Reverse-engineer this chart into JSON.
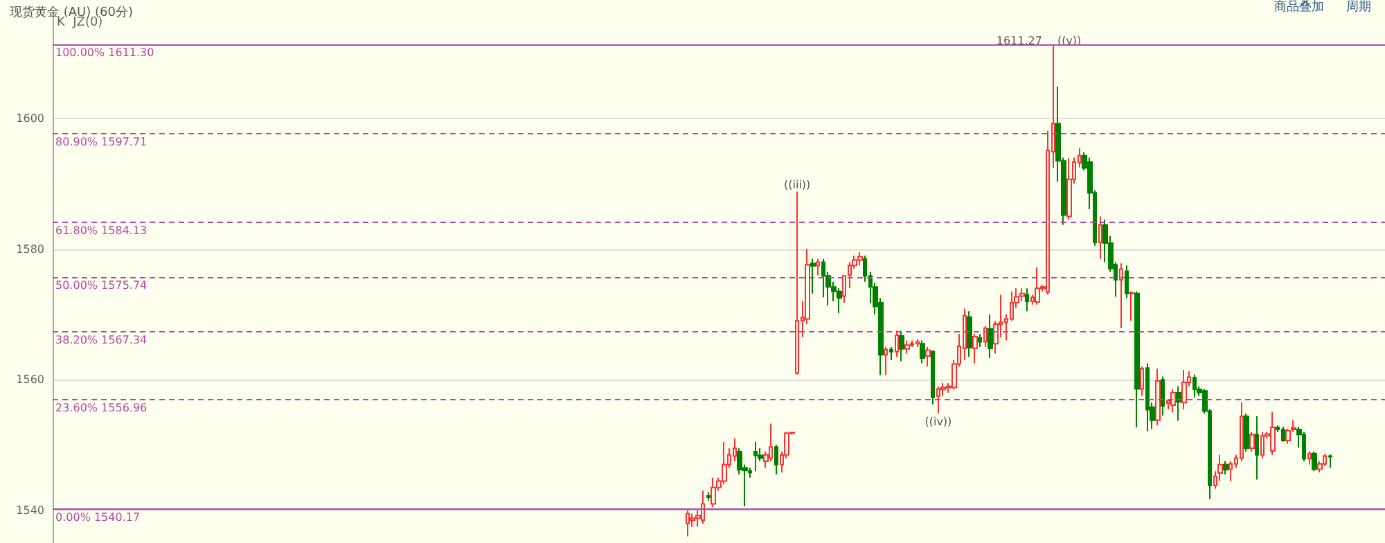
{
  "chart_data": {
    "type": "candlestick",
    "title": "现货黄金 (AU) (60分)",
    "categories": [
      null,
      null,
      null,
      null,
      null,
      null,
      null,
      null,
      null,
      null,
      null,
      null,
      null,
      null,
      null,
      null,
      null,
      null,
      null,
      null,
      null,
      null,
      null,
      null,
      null,
      null,
      null,
      null,
      null,
      null,
      null,
      null,
      null,
      null,
      null,
      null,
      null,
      null,
      null,
      null,
      null,
      null,
      null,
      null,
      null,
      null,
      null,
      null,
      null,
      null,
      null,
      null,
      null,
      null,
      null,
      null,
      null,
      null,
      null,
      null,
      null,
      null,
      null,
      null,
      null,
      null,
      null,
      null,
      null,
      null,
      null,
      null,
      null,
      null,
      null,
      null,
      null,
      null,
      null,
      null,
      null,
      null,
      null,
      null,
      null,
      null,
      null,
      null,
      null,
      null,
      null,
      null,
      null,
      null,
      null,
      null,
      null,
      null,
      null,
      null,
      null,
      null,
      null,
      null,
      null,
      null,
      null,
      null,
      null,
      null,
      null,
      null,
      null,
      null,
      null,
      null,
      null,
      null,
      null,
      null,
      null,
      null,
      null,
      null,
      null,
      null,
      null,
      null,
      null,
      null,
      null,
      null,
      null,
      null,
      null,
      null,
      null,
      null,
      null,
      null,
      null,
      null,
      null,
      null,
      null,
      null,
      null,
      null,
      null,
      null,
      null,
      null,
      null,
      null,
      null,
      null,
      null,
      null,
      null,
      null,
      null,
      null,
      null,
      null,
      null,
      null,
      null,
      null,
      null,
      null,
      null,
      null,
      null,
      null,
      null,
      null,
      null,
      null,
      null,
      null,
      null,
      null,
      null,
      null,
      null,
      null,
      null,
      null,
      null,
      null,
      null,
      null,
      null,
      null,
      null,
      null,
      null,
      null,
      null,
      null,
      null,
      null,
      null,
      null,
      null,
      null,
      null,
      null,
      null,
      null,
      null,
      null,
      null,
      null,
      null,
      null,
      null,
      null,
      null,
      null,
      null,
      null,
      null,
      null,
      null,
      null,
      null,
      null,
      null,
      null,
      null,
      null,
      null,
      null,
      null,
      null,
      null,
      null,
      null,
      null,
      null,
      null,
      null,
      null,
      null,
      null,
      null,
      null,
      null,
      null,
      null,
      null,
      null,
      null,
      null
    ],
    "ohlc": [
      null,
      null,
      null,
      null,
      null,
      null,
      null,
      null,
      null,
      null,
      null,
      null,
      null,
      null,
      null,
      null,
      null,
      null,
      null,
      null,
      null,
      null,
      null,
      null,
      null,
      null,
      null,
      null,
      null,
      null,
      null,
      null,
      null,
      null,
      null,
      null,
      null,
      null,
      null,
      null,
      null,
      null,
      null,
      null,
      null,
      null,
      null,
      null,
      null,
      null,
      null,
      null,
      null,
      null,
      null,
      null,
      null,
      null,
      null,
      null,
      null,
      null,
      null,
      null,
      null,
      null,
      null,
      null,
      null,
      null,
      null,
      null,
      null,
      null,
      null,
      null,
      null,
      null,
      null,
      null,
      null,
      null,
      null,
      null,
      null,
      null,
      null,
      null,
      null,
      null,
      null,
      null,
      null,
      null,
      null,
      null,
      null,
      null,
      null,
      null,
      null,
      null,
      null,
      null,
      null,
      null,
      null,
      null,
      null,
      null,
      null,
      null,
      null,
      null,
      null,
      null,
      null,
      null,
      null,
      null,
      null,
      [
        1538,
        1540,
        1536,
        1539.5
      ],
      [
        1538.5,
        1539.5,
        1537.5,
        1538.8
      ],
      [
        1538.8,
        1540,
        1537.5,
        1539.2
      ],
      [
        1538.5,
        1543,
        1538,
        1541
      ],
      [
        1542.2,
        1542.8,
        1541.5,
        1542
      ],
      [
        1541,
        1545,
        1540.5,
        1543.5
      ],
      [
        1543.5,
        1545,
        1543,
        1544.5
      ],
      [
        1544.5,
        1550.5,
        1544,
        1547
      ],
      [
        1547,
        1549.5,
        1546.5,
        1548.5
      ],
      [
        1548.3,
        1551,
        1547.5,
        1549.5
      ],
      [
        1549,
        1549.5,
        1545.5,
        1546.2
      ],
      [
        1546.5,
        1547,
        1540.6,
        1546.1
      ],
      [
        1546,
        1546.5,
        1545,
        1545.8
      ],
      [
        1549,
        1550.5,
        1546,
        1548.4
      ],
      [
        1548.4,
        1549.5,
        1547.5,
        1548
      ],
      [
        1547.5,
        1549,
        1546.5,
        1548.5
      ],
      [
        1548,
        1553.3,
        1547.5,
        1549.7
      ],
      [
        1549.7,
        1550,
        1545.5,
        1547
      ],
      [
        1547,
        1549,
        1545.8,
        1548.5
      ],
      [
        1548.5,
        1552,
        1548,
        1551.8
      ],
      [
        1551.8,
        1552,
        1551.6,
        1551.9
      ],
      [
        1561,
        1588.8,
        1560.8,
        1569
      ],
      [
        1569,
        1572,
        1566.5,
        1569.5
      ],
      [
        1569.3,
        1580,
        1568.5,
        1577.6
      ],
      [
        1577.8,
        1578.5,
        1573.2,
        1577.4
      ],
      [
        1577.5,
        1578.5,
        1576,
        1578
      ],
      [
        1578,
        1578.5,
        1572.6,
        1575.9
      ],
      [
        1575.9,
        1576.5,
        1571.4,
        1574.2
      ],
      [
        1574.2,
        1575,
        1572,
        1573.5
      ],
      [
        1573.5,
        1574,
        1570.2,
        1572.5
      ],
      [
        1572.8,
        1576,
        1571.8,
        1575.9
      ],
      [
        1576,
        1578,
        1574,
        1577.5
      ],
      [
        1577.5,
        1579,
        1577,
        1578.3
      ],
      [
        1578.3,
        1579.5,
        1577.5,
        1578.8
      ],
      [
        1578.5,
        1579,
        1575,
        1575.9
      ],
      [
        1575.9,
        1576.5,
        1571.7,
        1574.2
      ],
      [
        1574.2,
        1574.8,
        1570,
        1571.2
      ],
      [
        1571.8,
        1572.5,
        1560.7,
        1563.8
      ],
      [
        1563.8,
        1565,
        1560.7,
        1564.6
      ],
      [
        1564.6,
        1565,
        1563,
        1564.3
      ],
      [
        1564.3,
        1567.5,
        1563.5,
        1566.8
      ],
      [
        1566.7,
        1567.5,
        1562.8,
        1564.7
      ],
      [
        1564.7,
        1566,
        1564,
        1565.3
      ],
      [
        1565.3,
        1566,
        1565,
        1565.5
      ],
      [
        1565.5,
        1566.2,
        1565,
        1565.8
      ],
      [
        1565.5,
        1566,
        1562.5,
        1563.3
      ],
      [
        1563.6,
        1565,
        1562,
        1564.5
      ],
      [
        1564.3,
        1564.5,
        1556.2,
        1557.3
      ],
      [
        1557.5,
        1559,
        1554.8,
        1558.6
      ],
      [
        1558.5,
        1559.5,
        1557.5,
        1558.8
      ],
      [
        1558.8,
        1559.5,
        1558,
        1559
      ],
      [
        1558.8,
        1563,
        1558.5,
        1562.4
      ],
      [
        1562.4,
        1567,
        1562,
        1565.1
      ],
      [
        1564.8,
        1570.9,
        1563,
        1569.8
      ],
      [
        1569.6,
        1570.5,
        1563.5,
        1564.9
      ],
      [
        1564.8,
        1567,
        1562.5,
        1566.6
      ],
      [
        1566.4,
        1567,
        1565,
        1565.8
      ],
      [
        1565.8,
        1568.2,
        1565,
        1567.9
      ],
      [
        1567.8,
        1570,
        1563.3,
        1564.8
      ],
      [
        1565.5,
        1569,
        1564,
        1568.5
      ],
      [
        1568.5,
        1573,
        1566.5,
        1568.8
      ],
      [
        1568.8,
        1570,
        1566,
        1569.3
      ],
      [
        1569.3,
        1573.5,
        1569,
        1571.8
      ],
      [
        1571.8,
        1574,
        1571,
        1572.7
      ],
      [
        1572.8,
        1574,
        1572,
        1573.2
      ],
      [
        1573,
        1574,
        1570.5,
        1572
      ],
      [
        1572,
        1573,
        1571.5,
        1572.6
      ],
      [
        1571.9,
        1577.2,
        1571.5,
        1574
      ],
      [
        1574,
        1574.5,
        1573.5,
        1574.2
      ],
      [
        1573.4,
        1598.1,
        1573,
        1595.1
      ],
      [
        1594.9,
        1611.27,
        1592.4,
        1599.2
      ],
      [
        1599.2,
        1604.9,
        1590.3,
        1593.5
      ],
      [
        1593.5,
        1594,
        1583.7,
        1585.2
      ],
      [
        1585,
        1593.9,
        1584.5,
        1590.7
      ],
      [
        1590.7,
        1594,
        1590,
        1593.3
      ],
      [
        1593.2,
        1595.4,
        1592.5,
        1594.3
      ],
      [
        1594.3,
        1594.8,
        1592,
        1592.4
      ],
      [
        1593.3,
        1594,
        1586.1,
        1588.6
      ],
      [
        1588.6,
        1589,
        1580.5,
        1581
      ],
      [
        1581,
        1585,
        1578.5,
        1583.7
      ],
      [
        1583.7,
        1584.5,
        1578,
        1580.9
      ],
      [
        1580.9,
        1582,
        1576.5,
        1577
      ],
      [
        1577.6,
        1578,
        1572.7,
        1575.3
      ],
      [
        1575.3,
        1577.8,
        1567.9,
        1576.9
      ],
      [
        1576.6,
        1577.5,
        1572.5,
        1573.2
      ],
      [
        1573.2,
        1573.5,
        1569,
        1573.3
      ],
      [
        1573.2,
        1573.5,
        1552.7,
        1558.6
      ],
      [
        1558.6,
        1562,
        1557.5,
        1561.7
      ],
      [
        1561.8,
        1562.5,
        1552.1,
        1555.4
      ],
      [
        1555.8,
        1556.5,
        1552.5,
        1553.8
      ],
      [
        1553.8,
        1561.7,
        1553,
        1559.8
      ],
      [
        1560,
        1560.5,
        1554.5,
        1556
      ],
      [
        1556.4,
        1557,
        1555.5,
        1556.8
      ],
      [
        1556.1,
        1558.5,
        1555,
        1558
      ],
      [
        1558,
        1559,
        1553.7,
        1556.6
      ],
      [
        1556.5,
        1561.5,
        1555.5,
        1559.6
      ],
      [
        1559.6,
        1561.3,
        1559,
        1560.4
      ],
      [
        1560.3,
        1560.8,
        1557.3,
        1558.5
      ],
      [
        1558.5,
        1559,
        1557.5,
        1558
      ],
      [
        1558.3,
        1558.6,
        1554.8,
        1555.2
      ],
      [
        1555.2,
        1555.5,
        1541.7,
        1543.8
      ],
      [
        1543.8,
        1546,
        1543.3,
        1545.2
      ],
      [
        1545.7,
        1548.5,
        1544.5,
        1547
      ],
      [
        1547,
        1547.5,
        1545.5,
        1546.2
      ],
      [
        1546.3,
        1547.5,
        1544.5,
        1547.1
      ],
      [
        1547.1,
        1548.5,
        1546.5,
        1548
      ],
      [
        1548,
        1556.5,
        1547.5,
        1554.4
      ],
      [
        1554.4,
        1554.8,
        1549,
        1549.5
      ],
      [
        1549.5,
        1552,
        1549,
        1551.6
      ],
      [
        1551.6,
        1554.4,
        1544.7,
        1548.5
      ],
      [
        1548.5,
        1552,
        1548,
        1551.4
      ],
      [
        1551.4,
        1552,
        1551,
        1551.7
      ],
      [
        1549.1,
        1555,
        1548.5,
        1552.7
      ],
      [
        1552.7,
        1553,
        1552,
        1552.4
      ],
      [
        1552.4,
        1552.8,
        1550.5,
        1550.7
      ],
      [
        1550.7,
        1552.5,
        1550.2,
        1552.2
      ],
      [
        1552.4,
        1553.8,
        1552,
        1552.6
      ],
      [
        1552.4,
        1552.8,
        1549.6,
        1551.6
      ],
      [
        1551.6,
        1552,
        1547.5,
        1547.9
      ],
      [
        1547.9,
        1549,
        1547,
        1548.7
      ],
      [
        1548.7,
        1549,
        1546,
        1546.3
      ],
      [
        1546.3,
        1547.5,
        1545.8,
        1547.1
      ],
      [
        1547.1,
        1548.6,
        1546.8,
        1548.3
      ],
      [
        1548.3,
        1548.6,
        1546.5,
        1548.2
      ],
      null,
      null,
      null,
      null,
      null,
      null,
      null,
      null,
      null,
      null
    ],
    "ylim": [
      1535,
      1616
    ],
    "yticks": [
      1540,
      1560,
      1580,
      1600
    ],
    "grid": "y",
    "tick_labels": "y",
    "ref_lines": [
      {
        "axis": "y",
        "value": 1611.3,
        "label": "100.00% 1611.30",
        "color": "#b04aa8",
        "line_style": "solid"
      },
      {
        "axis": "y",
        "value": 1597.71,
        "label": "80.90% 1597.71",
        "color": "#b04aa8",
        "line_style": "dashed"
      },
      {
        "axis": "y",
        "value": 1584.13,
        "label": "61.80% 1584.13",
        "color": "#b04aa8",
        "line_style": "dashed"
      },
      {
        "axis": "y",
        "value": 1575.74,
        "label": "50.00% 1575.74",
        "color": "#b04aa8",
        "line_style": "dashed"
      },
      {
        "axis": "y",
        "value": 1567.34,
        "label": "38.20% 1567.34",
        "color": "#b04aa8",
        "line_style": "dashed"
      },
      {
        "axis": "y",
        "value": 1556.96,
        "label": "23.60% 1556.96",
        "color": "#b04aa8",
        "line_style": "dashed"
      },
      {
        "axis": "y",
        "value": 1540.17,
        "label": "0.00% 1540.17",
        "color": "#b04aa8",
        "line_style": "solid"
      }
    ],
    "annotations": [
      "K  JZ(0)",
      "商品叠加",
      "周期",
      {
        "text": "((iii))",
        "y": 1588.8
      },
      {
        "text": "((iv))",
        "y": 1554.8
      },
      {
        "text": "1611.27",
        "y": 1611.27
      },
      {
        "text": "((v))",
        "y": 1611.27
      }
    ]
  }
}
